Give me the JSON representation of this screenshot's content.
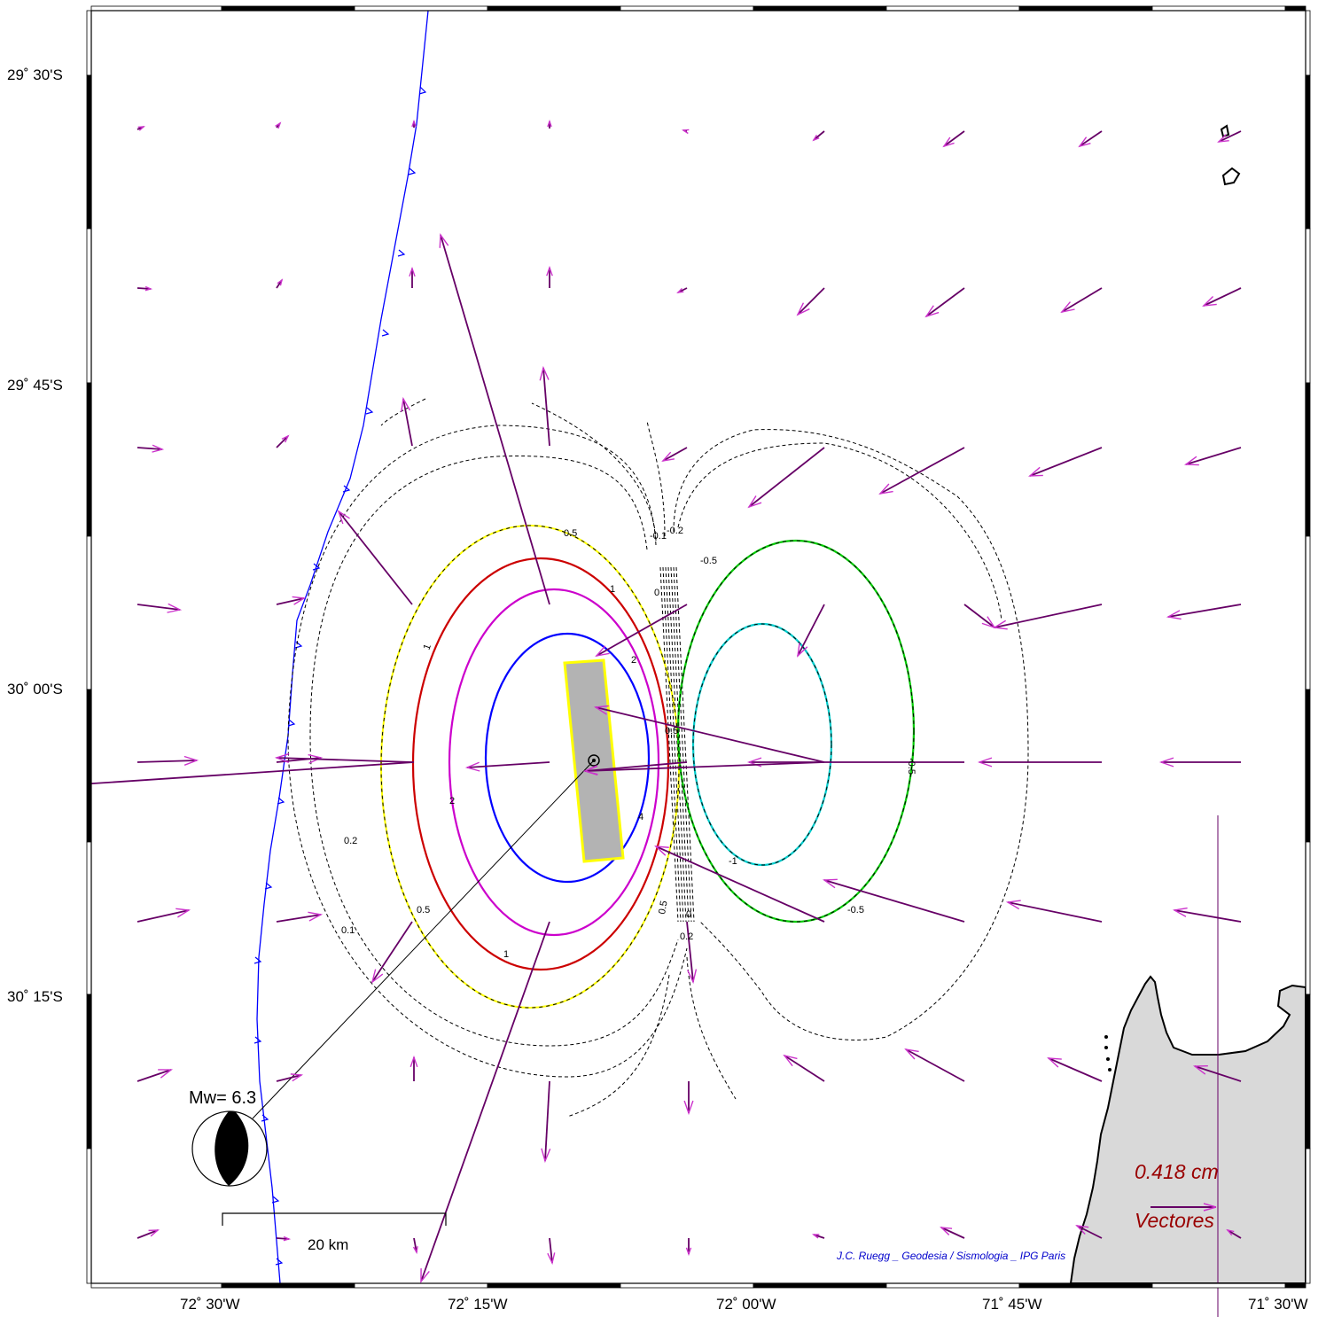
{
  "map": {
    "latitude_labels": [
      "29˚ 30'S",
      "29˚ 45'S",
      "30˚ 00'S",
      "30˚ 15'S"
    ],
    "longitude_labels": [
      "72˚ 30'W",
      "72˚ 15'W",
      "72˚ 00'W",
      "71˚ 45'W",
      "71˚ 30'W"
    ],
    "magnitude": "Mw= 6.3",
    "scale_bar_label": "20 km",
    "vector_scale_value": "0.418  cm",
    "vector_legend_label": "Vectores",
    "credit": "J.C. Ruegg _ Geodesia / Sismologia _ IPG Paris",
    "contour_labels": {
      "yellow": "0.5",
      "red": "1",
      "magenta": "2",
      "blue": "4",
      "green": "-0.5",
      "cyan": "-1",
      "dashed_01": "0.1",
      "dashed_02": "0.2",
      "dashed_0": "0",
      "dashed_m01": "-0.1",
      "dashed_m02": "-0.2"
    },
    "colors": {
      "trench": "#0000ff",
      "vector": "#660066",
      "vector_head": "#cc33cc",
      "land": "#d9d9d9",
      "fault": "#b3b3b3",
      "fault_outline": "#ffff00",
      "contour_0_5": "#ffff00",
      "contour_1": "#cc0000",
      "contour_2": "#cc00cc",
      "contour_4": "#0000ff",
      "contour_m0_5": "#00cc00",
      "contour_m1": "#00cccc",
      "legend_text": "#990000",
      "credit": "#0000cc"
    }
  }
}
